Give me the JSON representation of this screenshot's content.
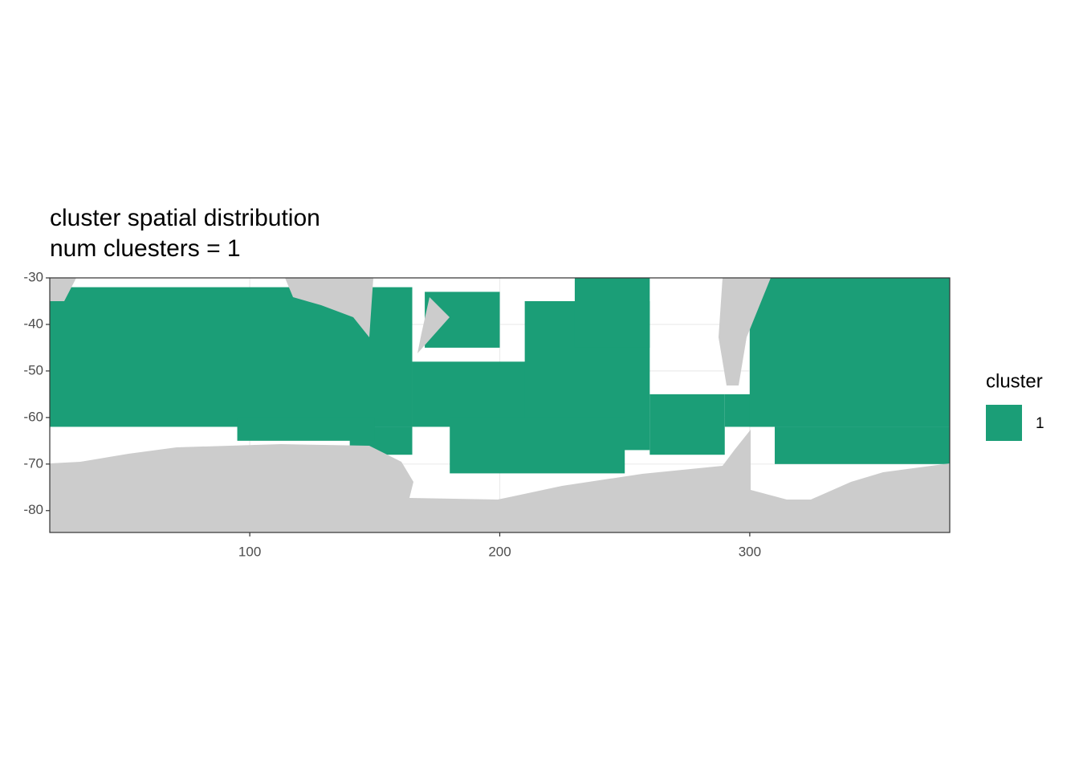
{
  "chart_data": {
    "type": "tile-map",
    "title": "cluster spatial distribution",
    "subtitle": "num cluesters = 1",
    "xlim": [
      20,
      380
    ],
    "ylim": [
      -84.7,
      -30
    ],
    "xticks": [
      100,
      200,
      300
    ],
    "yticks": [
      -80,
      -70,
      -60,
      -50,
      -40,
      -30
    ],
    "grid": true,
    "legend_title": "cluster",
    "legend_position": "right",
    "series": [
      {
        "name": "1",
        "color": "#1b9e77",
        "regions": [
          {
            "xmin": 20,
            "xmax": 165,
            "ymin": -62,
            "ymax": -32
          },
          {
            "xmin": 165,
            "xmax": 215,
            "ymin": -62,
            "ymax": -48
          },
          {
            "xmin": 170,
            "xmax": 200,
            "ymin": -45,
            "ymax": -33
          },
          {
            "xmin": 210,
            "xmax": 260,
            "ymin": -67,
            "ymax": -35
          },
          {
            "xmin": 230,
            "xmax": 260,
            "ymin": -45,
            "ymax": -30
          },
          {
            "xmin": 260,
            "xmax": 290,
            "ymin": -68,
            "ymax": -55
          },
          {
            "xmin": 290,
            "xmax": 310,
            "ymin": -62,
            "ymax": -55
          },
          {
            "xmin": 300,
            "xmax": 380,
            "ymin": -62,
            "ymax": -30
          },
          {
            "xmin": 310,
            "xmax": 380,
            "ymin": -70,
            "ymax": -62
          },
          {
            "xmin": 180,
            "xmax": 250,
            "ymin": -72,
            "ymax": -60
          },
          {
            "xmin": 140,
            "xmax": 165,
            "ymin": -68,
            "ymax": -62
          },
          {
            "xmin": 95,
            "xmax": 150,
            "ymin": -65,
            "ymax": -60
          }
        ]
      }
    ]
  }
}
